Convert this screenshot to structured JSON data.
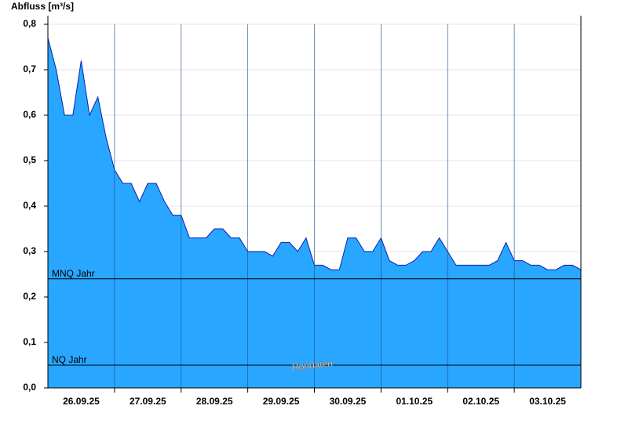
{
  "chart_data": {
    "type": "area",
    "title": "Abfluss [m³/s]",
    "x": [
      "2025-09-26T00:00",
      "2025-09-26T03:00",
      "2025-09-26T06:00",
      "2025-09-26T09:00",
      "2025-09-26T12:00",
      "2025-09-26T15:00",
      "2025-09-26T18:00",
      "2025-09-26T21:00",
      "2025-09-27T00:00",
      "2025-09-27T03:00",
      "2025-09-27T06:00",
      "2025-09-27T09:00",
      "2025-09-27T12:00",
      "2025-09-27T15:00",
      "2025-09-27T18:00",
      "2025-09-27T21:00",
      "2025-09-28T00:00",
      "2025-09-28T03:00",
      "2025-09-28T06:00",
      "2025-09-28T09:00",
      "2025-09-28T12:00",
      "2025-09-28T15:00",
      "2025-09-28T18:00",
      "2025-09-28T21:00",
      "2025-09-29T00:00",
      "2025-09-29T03:00",
      "2025-09-29T06:00",
      "2025-09-29T09:00",
      "2025-09-29T12:00",
      "2025-09-29T15:00",
      "2025-09-29T18:00",
      "2025-09-29T21:00",
      "2025-09-30T00:00",
      "2025-09-30T03:00",
      "2025-09-30T06:00",
      "2025-09-30T09:00",
      "2025-09-30T12:00",
      "2025-09-30T15:00",
      "2025-09-30T18:00",
      "2025-09-30T21:00",
      "2025-10-01T00:00",
      "2025-10-01T03:00",
      "2025-10-01T06:00",
      "2025-10-01T09:00",
      "2025-10-01T12:00",
      "2025-10-01T15:00",
      "2025-10-01T18:00",
      "2025-10-01T21:00",
      "2025-10-02T00:00",
      "2025-10-02T03:00",
      "2025-10-02T06:00",
      "2025-10-02T09:00",
      "2025-10-02T12:00",
      "2025-10-02T15:00",
      "2025-10-02T18:00",
      "2025-10-02T21:00",
      "2025-10-03T00:00",
      "2025-10-03T03:00",
      "2025-10-03T06:00",
      "2025-10-03T09:00",
      "2025-10-03T12:00",
      "2025-10-03T15:00",
      "2025-10-03T18:00",
      "2025-10-03T21:00",
      "2025-10-04T00:00"
    ],
    "values": [
      0.77,
      0.7,
      0.6,
      0.6,
      0.72,
      0.6,
      0.64,
      0.55,
      0.48,
      0.45,
      0.45,
      0.41,
      0.45,
      0.45,
      0.41,
      0.38,
      0.38,
      0.33,
      0.33,
      0.33,
      0.35,
      0.35,
      0.33,
      0.33,
      0.3,
      0.3,
      0.3,
      0.29,
      0.32,
      0.32,
      0.3,
      0.33,
      0.27,
      0.27,
      0.26,
      0.26,
      0.33,
      0.33,
      0.3,
      0.3,
      0.33,
      0.28,
      0.27,
      0.27,
      0.28,
      0.3,
      0.3,
      0.33,
      0.3,
      0.27,
      0.27,
      0.27,
      0.27,
      0.27,
      0.28,
      0.32,
      0.28,
      0.28,
      0.27,
      0.27,
      0.26,
      0.26,
      0.27,
      0.27,
      0.26
    ],
    "color": "#29a6ff",
    "line_color": "#0a1fb0",
    "xlim": [
      "2025-09-26T00:00",
      "2025-10-04T00:00"
    ],
    "xticks": [
      {
        "value": "2025-09-26T12:00",
        "label": "26.09.25"
      },
      {
        "value": "2025-09-27T12:00",
        "label": "27.09.25"
      },
      {
        "value": "2025-09-28T12:00",
        "label": "28.09.25"
      },
      {
        "value": "2025-09-29T12:00",
        "label": "29.09.25"
      },
      {
        "value": "2025-09-30T12:00",
        "label": "30.09.25"
      },
      {
        "value": "2025-10-01T12:00",
        "label": "01.10.25"
      },
      {
        "value": "2025-10-02T12:00",
        "label": "02.10.25"
      },
      {
        "value": "2025-10-03T12:00",
        "label": "03.10.25"
      }
    ],
    "xgrid": [
      "2025-09-27T00:00",
      "2025-09-28T00:00",
      "2025-09-29T00:00",
      "2025-09-30T00:00",
      "2025-10-01T00:00",
      "2025-10-02T00:00",
      "2025-10-03T00:00"
    ],
    "ylim": [
      0,
      0.8
    ],
    "yticks": [
      {
        "value": 0,
        "label": "0,0"
      },
      {
        "value": 0.1,
        "label": "0,1"
      },
      {
        "value": 0.2,
        "label": "0,2"
      },
      {
        "value": 0.3,
        "label": "0,3"
      },
      {
        "value": 0.4,
        "label": "0,4"
      },
      {
        "value": 0.5,
        "label": "0,5"
      },
      {
        "value": 0.6,
        "label": "0,6"
      },
      {
        "value": 0.7,
        "label": "0,7"
      },
      {
        "value": 0.8,
        "label": "0,8"
      }
    ],
    "grid": true,
    "reference_lines": [
      {
        "label": "MNQ Jahr",
        "value": 0.24
      },
      {
        "label": "NQ Jahr",
        "value": 0.05
      }
    ],
    "annotation": "Rohdaten"
  }
}
